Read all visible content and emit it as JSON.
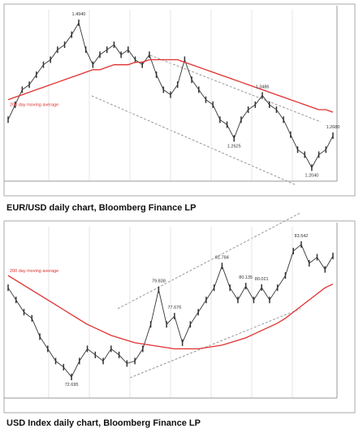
{
  "chart_data": [
    {
      "type": "line",
      "ylim": [
        1.19,
        1.52
      ],
      "grid": true,
      "series": [
        {
          "color": "#333333",
          "values": [
            1.3,
            1.33,
            1.36,
            1.37,
            1.39,
            1.41,
            1.42,
            1.44,
            1.45,
            1.47,
            1.494,
            1.44,
            1.41,
            1.43,
            1.44,
            1.45,
            1.43,
            1.44,
            1.42,
            1.41,
            1.43,
            1.39,
            1.36,
            1.35,
            1.37,
            1.42,
            1.38,
            1.36,
            1.34,
            1.33,
            1.3,
            1.29,
            1.2625,
            1.3,
            1.32,
            1.33,
            1.3486,
            1.33,
            1.32,
            1.3,
            1.27,
            1.24,
            1.23,
            1.204,
            1.23,
            1.24,
            1.268
          ]
        },
        {
          "name": "200 day moving average",
          "color": "#e03030",
          "values": [
            1.34,
            1.345,
            1.35,
            1.355,
            1.36,
            1.365,
            1.37,
            1.375,
            1.38,
            1.385,
            1.39,
            1.395,
            1.4,
            1.4,
            1.405,
            1.41,
            1.41,
            1.41,
            1.415,
            1.415,
            1.42,
            1.42,
            1.42,
            1.42,
            1.42,
            1.415,
            1.41,
            1.405,
            1.4,
            1.395,
            1.39,
            1.385,
            1.38,
            1.375,
            1.37,
            1.365,
            1.36,
            1.355,
            1.35,
            1.345,
            1.34,
            1.335,
            1.33,
            1.325,
            1.32,
            1.32,
            1.315
          ]
        }
      ],
      "annotations": [
        "1.4940",
        "1.3486",
        "1.2625",
        "1.2040",
        "1.2680"
      ],
      "caption": "EUR/USD daily chart, Bloomberg Finance LP"
    },
    {
      "type": "line",
      "ylim": [
        71.5,
        85
      ],
      "grid": true,
      "series": [
        {
          "color": "#333333",
          "values": [
            80,
            79,
            78,
            77.5,
            76,
            75,
            74,
            73.5,
            72.695,
            74,
            75,
            74.5,
            74,
            75,
            74.5,
            73.8,
            74,
            75,
            77,
            79.838,
            77,
            77.676,
            75.5,
            77,
            78,
            79,
            80,
            81.784,
            80,
            79,
            80.135,
            79,
            80.021,
            79,
            80,
            81,
            83,
            83.542,
            82,
            82.5,
            81.5,
            82.6
          ]
        },
        {
          "name": "200 day moving average",
          "color": "#e03030",
          "values": [
            81,
            80.6,
            80.2,
            79.8,
            79.4,
            79,
            78.6,
            78.2,
            77.8,
            77.4,
            77,
            76.7,
            76.4,
            76.1,
            75.9,
            75.7,
            75.5,
            75.4,
            75.3,
            75.2,
            75.1,
            75,
            75,
            75,
            75,
            75.1,
            75.2,
            75.3,
            75.5,
            75.7,
            75.9,
            76.2,
            76.5,
            76.8,
            77.1,
            77.5,
            78,
            78.5,
            79,
            79.5,
            80,
            80.3
          ]
        }
      ],
      "annotations": [
        "83.542",
        "81.784",
        "79.838",
        "80.135",
        "77.676",
        "80.021",
        "72.695"
      ],
      "caption": "USD Index daily chart, Bloomberg Finance LP"
    }
  ]
}
